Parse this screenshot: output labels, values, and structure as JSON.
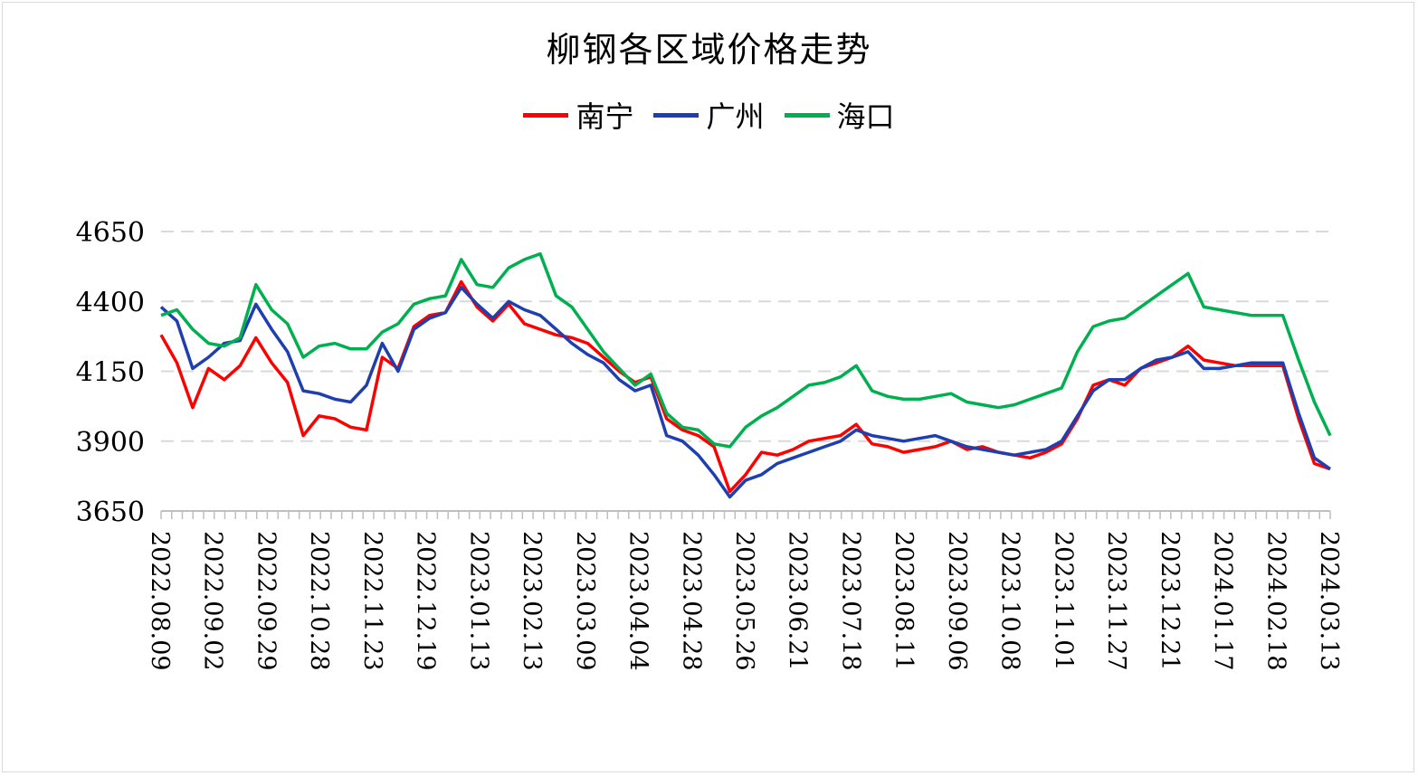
{
  "chart_data": {
    "type": "line",
    "title": "柳钢各区域价格走势",
    "xlabel": "",
    "ylabel": "",
    "ylim": [
      3650,
      4650
    ],
    "yticks": [
      3650,
      3900,
      4150,
      4400,
      4650
    ],
    "grid": "horizontal dashed",
    "legend": "top-center",
    "x_tick_labels": [
      "2022.08.09",
      "2022.09.02",
      "2022.09.29",
      "2022.10.28",
      "2022.11.23",
      "2022.12.19",
      "2023.01.13",
      "2023.02.13",
      "2023.03.09",
      "2023.04.04",
      "2023.04.28",
      "2023.05.26",
      "2023.06.21",
      "2023.07.18",
      "2023.08.11",
      "2023.09.06",
      "2023.10.08",
      "2023.11.01",
      "2023.11.27",
      "2023.12.21",
      "2024.01.17",
      "2024.02.18",
      "2024.03.13"
    ],
    "series": [
      {
        "name": "南宁",
        "color": "#ff0000",
        "values": [
          4280,
          4180,
          4020,
          4160,
          4120,
          4170,
          4270,
          4180,
          4110,
          3920,
          3990,
          3980,
          3950,
          3940,
          4200,
          4160,
          4310,
          4350,
          4360,
          4470,
          4380,
          4330,
          4390,
          4320,
          4300,
          4280,
          4270,
          4250,
          4200,
          4150,
          4110,
          4130,
          3980,
          3940,
          3920,
          3880,
          3720,
          3780,
          3860,
          3850,
          3870,
          3900,
          3910,
          3920,
          3960,
          3890,
          3880,
          3860,
          3870,
          3880,
          3900,
          3870,
          3880,
          3860,
          3850,
          3840,
          3860,
          3890,
          3980,
          4100,
          4120,
          4100,
          4160,
          4180,
          4200,
          4240,
          4190,
          4180,
          4170,
          4170,
          4170,
          4170,
          3980,
          3820,
          3800
        ]
      },
      {
        "name": "广州",
        "color": "#1f3fae",
        "values": [
          4380,
          4330,
          4160,
          4200,
          4250,
          4260,
          4390,
          4300,
          4220,
          4080,
          4070,
          4050,
          4040,
          4100,
          4250,
          4150,
          4300,
          4340,
          4360,
          4450,
          4390,
          4340,
          4400,
          4370,
          4350,
          4300,
          4250,
          4210,
          4180,
          4120,
          4080,
          4100,
          3920,
          3900,
          3850,
          3780,
          3700,
          3760,
          3780,
          3820,
          3840,
          3860,
          3880,
          3900,
          3940,
          3920,
          3910,
          3900,
          3910,
          3920,
          3900,
          3880,
          3870,
          3860,
          3850,
          3860,
          3870,
          3900,
          3990,
          4080,
          4120,
          4120,
          4160,
          4190,
          4200,
          4220,
          4160,
          4160,
          4170,
          4180,
          4180,
          4180,
          4000,
          3840,
          3800
        ]
      },
      {
        "name": "海口",
        "color": "#00b050",
        "values": [
          4350,
          4370,
          4300,
          4250,
          4240,
          4270,
          4460,
          4370,
          4320,
          4200,
          4240,
          4250,
          4230,
          4230,
          4290,
          4320,
          4390,
          4410,
          4420,
          4550,
          4460,
          4450,
          4520,
          4550,
          4570,
          4420,
          4380,
          4300,
          4220,
          4160,
          4100,
          4140,
          4000,
          3950,
          3940,
          3890,
          3880,
          3950,
          3990,
          4020,
          4060,
          4100,
          4110,
          4130,
          4170,
          4080,
          4060,
          4050,
          4050,
          4060,
          4070,
          4040,
          4030,
          4020,
          4030,
          4050,
          4070,
          4090,
          4220,
          4310,
          4330,
          4340,
          4380,
          4420,
          4460,
          4500,
          4380,
          4370,
          4360,
          4350,
          4350,
          4350,
          4190,
          4040,
          3920
        ]
      }
    ]
  }
}
